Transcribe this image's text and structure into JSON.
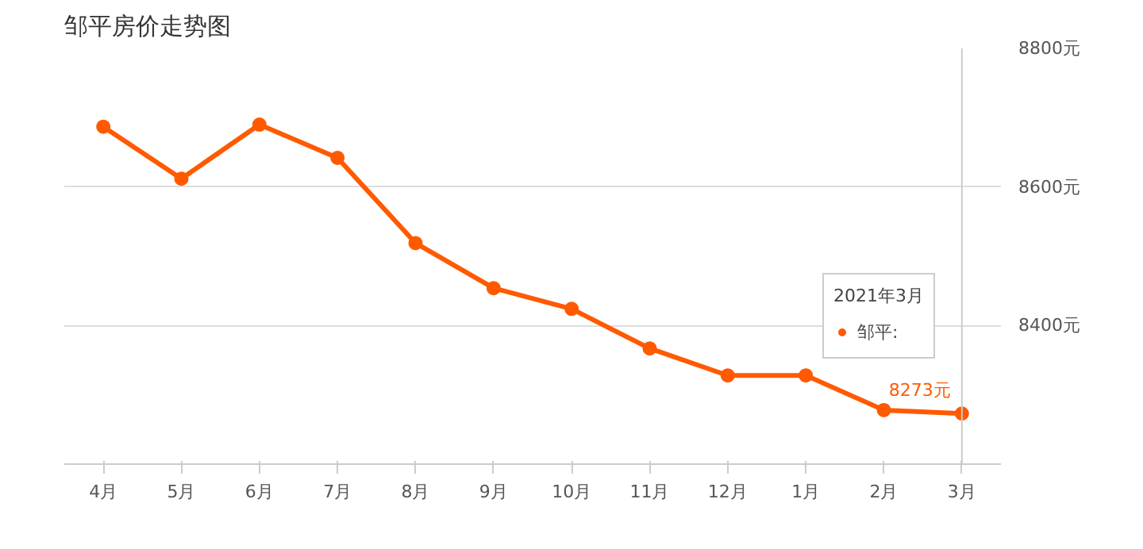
{
  "chart_data": {
    "type": "line",
    "title": "邹平房价走势图",
    "categories": [
      "4月",
      "5月",
      "6月",
      "7月",
      "8月",
      "9月",
      "10月",
      "11月",
      "12月",
      "1月",
      "2月",
      "3月"
    ],
    "series": [
      {
        "name": "邹平:",
        "color": "#ff5a00",
        "values": [
          8687,
          8612,
          8690,
          8642,
          8519,
          8454,
          8424,
          8367,
          8328,
          8328,
          8278,
          8273
        ],
        "value_labels": [
          null,
          null,
          null,
          null,
          null,
          null,
          null,
          null,
          null,
          null,
          null,
          "8273元"
        ]
      }
    ],
    "ylim": [
      8200,
      8800
    ],
    "yticks": [
      {
        "value": 8400,
        "label": "8400元"
      },
      {
        "value": 8600,
        "label": "8600元"
      },
      {
        "value": 8800,
        "label": "8800元"
      }
    ],
    "grid": "y",
    "marker": "circle",
    "line_style": "solid",
    "legend": "bottom right",
    "legend_title": "2021年3月",
    "ref_lines": [
      {
        "axis": "x",
        "value": "3月",
        "color": "#cccccc"
      }
    ]
  }
}
